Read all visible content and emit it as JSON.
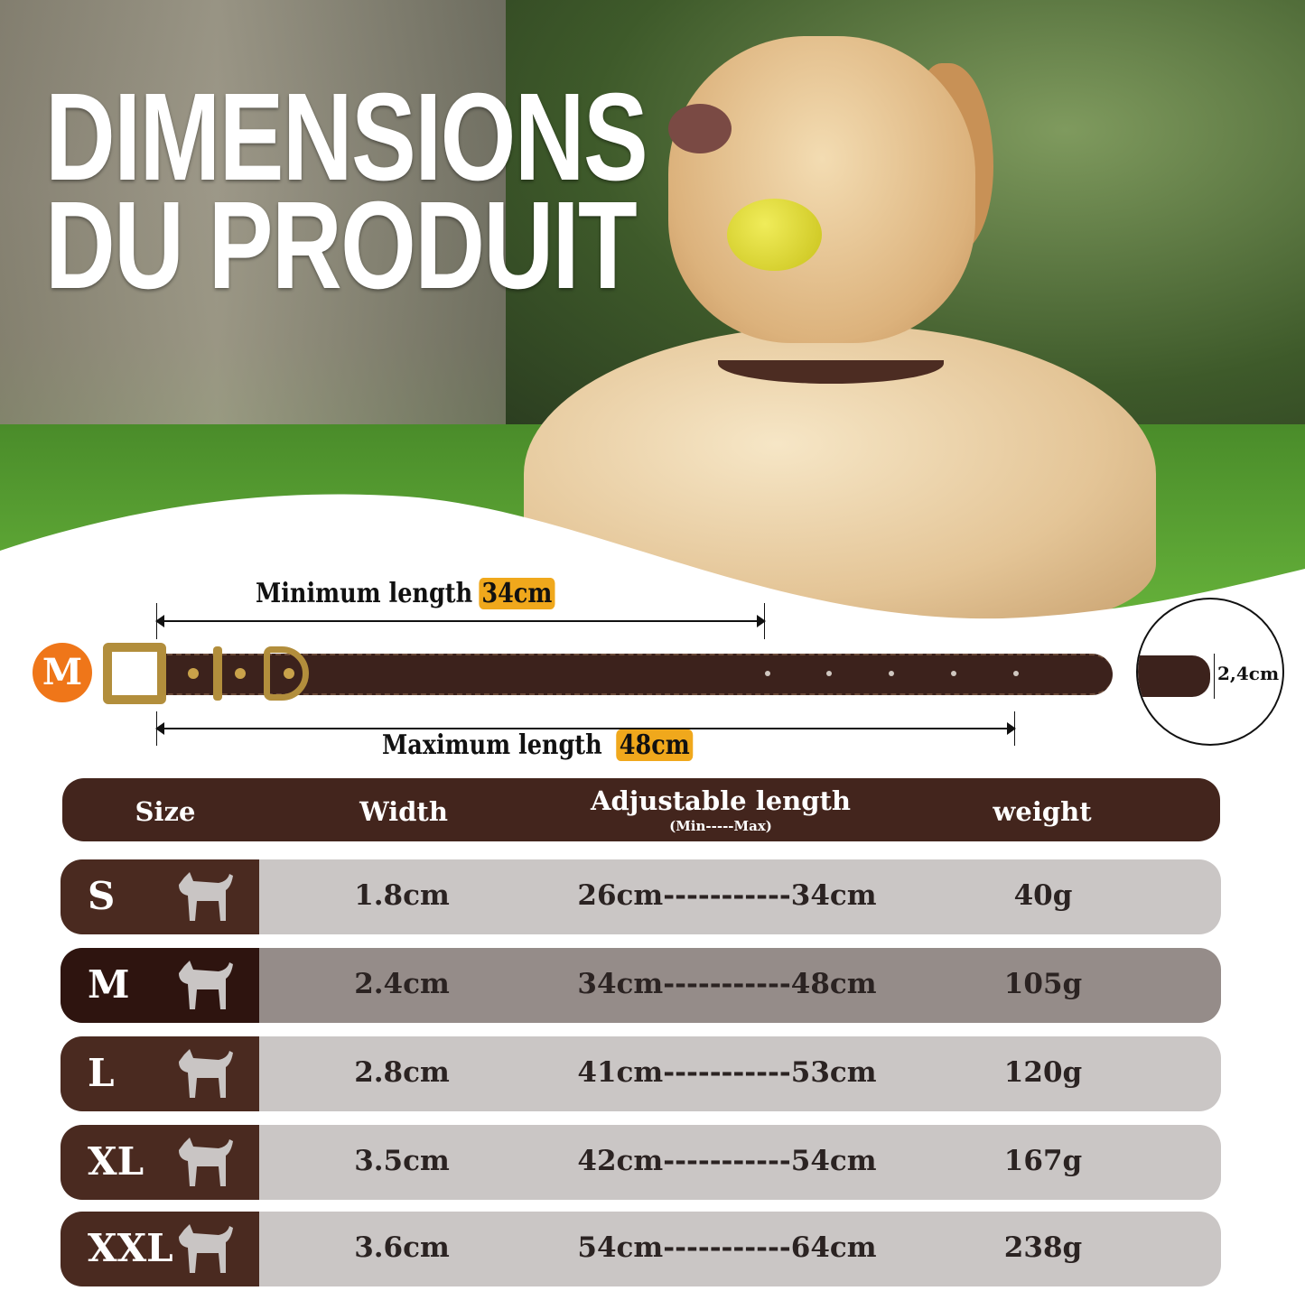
{
  "title": {
    "line1": "DIMENSIONS",
    "line2": "DU PRODUIT"
  },
  "diagram": {
    "size_badge": "M",
    "min_label": "Minimum length",
    "min_value": "34cm",
    "max_label": "Maximum length",
    "max_value": "48cm",
    "width_value": "2,4cm"
  },
  "table": {
    "headers": {
      "size": "Size",
      "width": "Width",
      "length": "Adjustable length",
      "length_sub": "(Min-----Max)",
      "weight": "weight"
    },
    "rows": [
      {
        "size": "S",
        "width": "1.8cm",
        "length": "26cm-----------34cm",
        "weight": "40g",
        "highlighted": false
      },
      {
        "size": "M",
        "width": "2.4cm",
        "length": "34cm-----------48cm",
        "weight": "105g",
        "highlighted": true
      },
      {
        "size": "L",
        "width": "2.8cm",
        "length": "41cm-----------53cm",
        "weight": "120g",
        "highlighted": false
      },
      {
        "size": "XL",
        "width": "3.5cm",
        "length": "42cm-----------54cm",
        "weight": "167g",
        "highlighted": false
      },
      {
        "size": "XXL",
        "width": "3.6cm",
        "length": "54cm-----------64cm",
        "weight": "238g",
        "highlighted": false
      }
    ]
  },
  "colors": {
    "header_brown": "#43251d",
    "accent_orange": "#ef7619",
    "tag_yellow": "#f0a81c",
    "row_grey": "#cac6c5",
    "selected_grey": "#958c89"
  }
}
